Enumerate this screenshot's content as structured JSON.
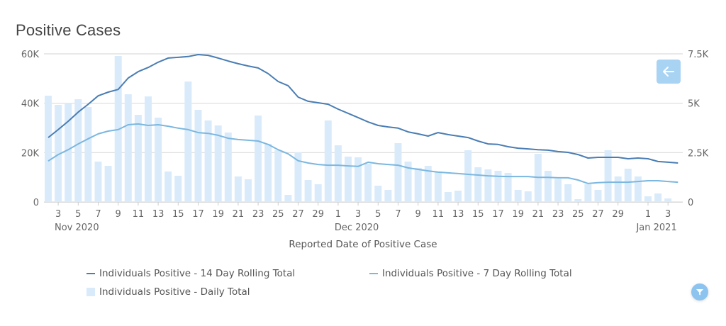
{
  "colors": {
    "line14": "#4a7db3",
    "line7": "#7bb7df",
    "bars": "#d9ebfb",
    "grid": "#dcdcdc",
    "back_button": "#a9d3f3",
    "filter_button": "#8cc4ef"
  },
  "icons": {
    "back": "arrow-left-icon",
    "filter": "funnel-icon"
  },
  "chart_data": {
    "type": "bar+line",
    "title": "Positive Cases",
    "xlabel": "Reported Date of Positive Case",
    "ylabel_left": "",
    "ylabel_right": "",
    "ylim_left": [
      0,
      60000
    ],
    "ylim_right": [
      0,
      7500
    ],
    "yticks_left": [
      "0",
      "20K",
      "40K",
      "60K"
    ],
    "yticks_right": [
      "0",
      "2.5K",
      "5K",
      "7.5K"
    ],
    "grid": true,
    "legend_position": "bottom",
    "x": [
      "2020-11-02",
      "2020-11-03",
      "2020-11-04",
      "2020-11-05",
      "2020-11-06",
      "2020-11-07",
      "2020-11-08",
      "2020-11-09",
      "2020-11-10",
      "2020-11-11",
      "2020-11-12",
      "2020-11-13",
      "2020-11-14",
      "2020-11-15",
      "2020-11-16",
      "2020-11-17",
      "2020-11-18",
      "2020-11-19",
      "2020-11-20",
      "2020-11-21",
      "2020-11-22",
      "2020-11-23",
      "2020-11-24",
      "2020-11-25",
      "2020-11-26",
      "2020-11-27",
      "2020-11-28",
      "2020-11-29",
      "2020-11-30",
      "2020-12-01",
      "2020-12-02",
      "2020-12-03",
      "2020-12-04",
      "2020-12-05",
      "2020-12-06",
      "2020-12-07",
      "2020-12-08",
      "2020-12-09",
      "2020-12-10",
      "2020-12-11",
      "2020-12-12",
      "2020-12-13",
      "2020-12-14",
      "2020-12-15",
      "2020-12-16",
      "2020-12-17",
      "2020-12-18",
      "2020-12-19",
      "2020-12-20",
      "2020-12-21",
      "2020-12-22",
      "2020-12-23",
      "2020-12-24",
      "2020-12-25",
      "2020-12-26",
      "2020-12-27",
      "2020-12-28",
      "2020-12-29",
      "2020-12-30",
      "2020-12-31",
      "2021-01-01",
      "2021-01-02",
      "2021-01-03",
      "2021-01-04"
    ],
    "xtick_labels": [
      {
        "index": 1,
        "label": "3"
      },
      {
        "index": 3,
        "label": "5"
      },
      {
        "index": 5,
        "label": "7"
      },
      {
        "index": 7,
        "label": "9"
      },
      {
        "index": 9,
        "label": "11"
      },
      {
        "index": 11,
        "label": "13"
      },
      {
        "index": 13,
        "label": "15"
      },
      {
        "index": 15,
        "label": "17"
      },
      {
        "index": 17,
        "label": "19"
      },
      {
        "index": 19,
        "label": "21"
      },
      {
        "index": 21,
        "label": "23"
      },
      {
        "index": 23,
        "label": "25"
      },
      {
        "index": 25,
        "label": "27"
      },
      {
        "index": 27,
        "label": "29"
      },
      {
        "index": 29,
        "label": "1"
      },
      {
        "index": 31,
        "label": "3"
      },
      {
        "index": 33,
        "label": "5"
      },
      {
        "index": 35,
        "label": "7"
      },
      {
        "index": 37,
        "label": "9"
      },
      {
        "index": 39,
        "label": "11"
      },
      {
        "index": 41,
        "label": "13"
      },
      {
        "index": 43,
        "label": "15"
      },
      {
        "index": 45,
        "label": "17"
      },
      {
        "index": 47,
        "label": "19"
      },
      {
        "index": 49,
        "label": "21"
      },
      {
        "index": 51,
        "label": "23"
      },
      {
        "index": 53,
        "label": "25"
      },
      {
        "index": 55,
        "label": "27"
      },
      {
        "index": 57,
        "label": "29"
      },
      {
        "index": 60,
        "label": "1"
      },
      {
        "index": 62,
        "label": "3"
      }
    ],
    "month_labels": [
      {
        "index": 3,
        "label": "Nov 2020"
      },
      {
        "index": 31,
        "label": "Dec 2020"
      },
      {
        "index": 61,
        "label": "Jan 2021"
      }
    ],
    "series": [
      {
        "name": "Individuals Positive - 14 Day Rolling Total",
        "type": "line",
        "axis": "left",
        "values": [
          26100,
          29300,
          32700,
          36400,
          39600,
          43000,
          44500,
          45600,
          50200,
          52800,
          54500,
          56600,
          58300,
          58600,
          58900,
          59700,
          59400,
          58300,
          57100,
          56000,
          55100,
          54300,
          52000,
          48800,
          47100,
          42500,
          40800,
          40200,
          39600,
          37600,
          35900,
          34200,
          32400,
          31000,
          30400,
          29900,
          28400,
          27600,
          26700,
          28100,
          27300,
          26700,
          26100,
          24700,
          23500,
          23300,
          22400,
          21800,
          21500,
          21200,
          21000,
          20400,
          20100,
          19200,
          17800,
          18100,
          18100,
          18100,
          17500,
          17800,
          17500,
          16400,
          16100,
          15800
        ]
      },
      {
        "name": "Individuals Positive - 7 Day Rolling Total",
        "type": "line",
        "axis": "left",
        "values": [
          16600,
          19200,
          21200,
          23500,
          25600,
          27600,
          28700,
          29300,
          31300,
          31600,
          31000,
          31300,
          30700,
          29900,
          29300,
          28100,
          27800,
          27000,
          25800,
          25300,
          25000,
          24700,
          23300,
          21200,
          19500,
          16700,
          15800,
          15200,
          14900,
          14900,
          14600,
          14400,
          16100,
          15500,
          15200,
          14900,
          13800,
          13200,
          12600,
          12100,
          11800,
          11500,
          11200,
          10900,
          10600,
          10400,
          10300,
          10300,
          10300,
          10000,
          10000,
          9800,
          9800,
          8900,
          7500,
          7800,
          8000,
          8000,
          8000,
          8300,
          8600,
          8600,
          8300,
          8000
        ]
      },
      {
        "name": "Individuals Positive - Daily Total",
        "type": "bar",
        "axis": "right",
        "values": [
          5383,
          4916,
          5024,
          5203,
          4808,
          2045,
          1830,
          7392,
          5455,
          4414,
          5347,
          4270,
          1543,
          1328,
          6100,
          4665,
          4127,
          3876,
          3517,
          1292,
          1148,
          4378,
          2943,
          2620,
          359,
          2512,
          1112,
          897,
          4127,
          2871,
          2297,
          2261,
          1938,
          825,
          610,
          2979,
          2045,
          1722,
          1830,
          1543,
          502,
          574,
          2620,
          1758,
          1651,
          1579,
          1471,
          610,
          538,
          2440,
          1579,
          1166,
          897,
          144,
          897,
          610,
          2620,
          1292,
          1687,
          1292,
          287,
          431,
          179,
          null
        ]
      }
    ]
  },
  "legend": [
    {
      "label": "Individuals Positive - 14 Day Rolling Total",
      "kind": "line",
      "color_key": "line14"
    },
    {
      "label": "Individuals Positive - 7 Day Rolling Total",
      "kind": "line",
      "color_key": "line7"
    },
    {
      "label": "Individuals Positive - Daily Total",
      "kind": "box",
      "color_key": "bars"
    }
  ]
}
